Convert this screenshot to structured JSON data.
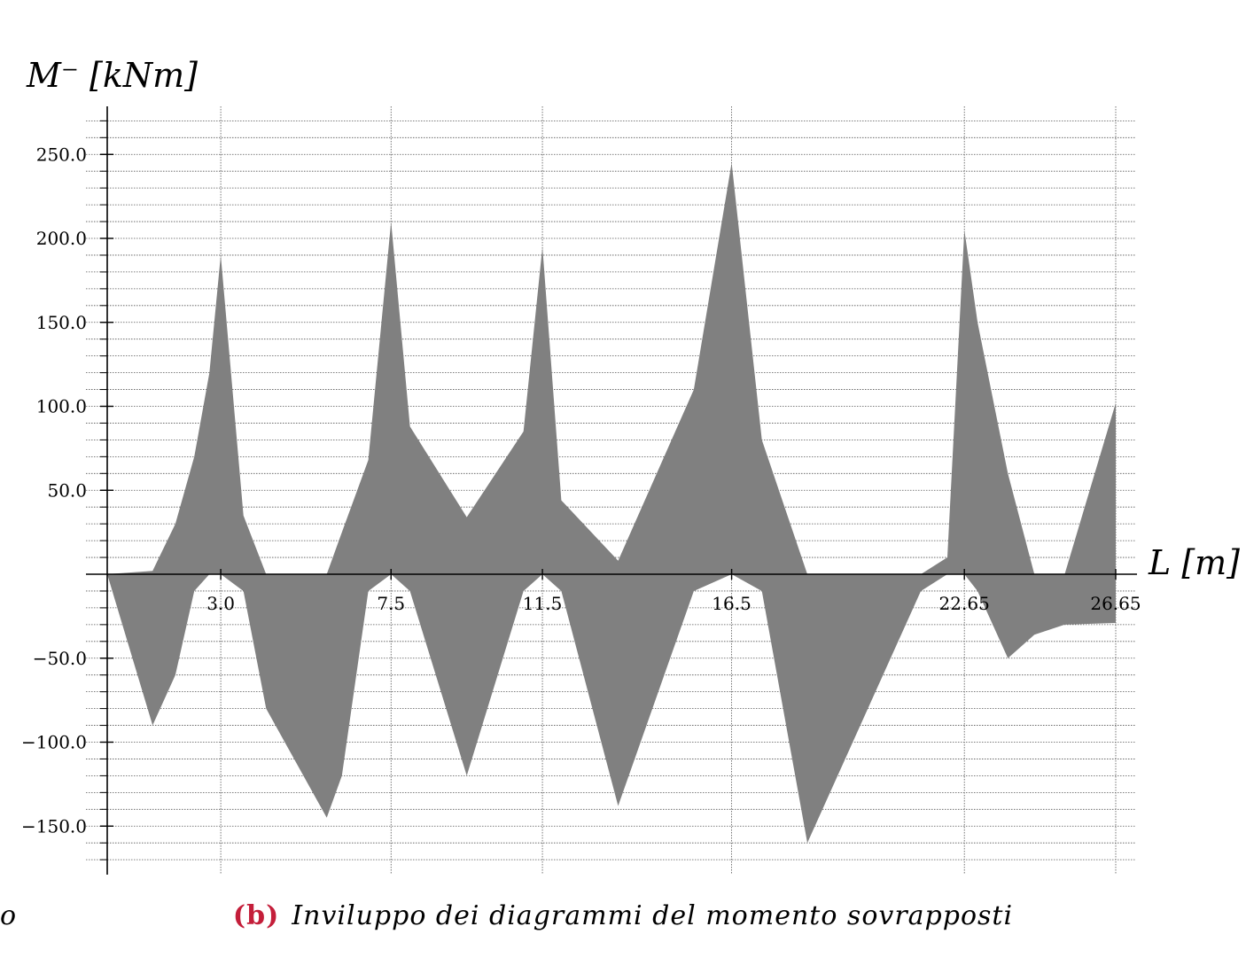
{
  "chart_data": {
    "type": "area",
    "ylabel": "M⁻ [kNm]",
    "xlabel": "L [m]",
    "x_ticks": [
      "3.0",
      "7.5",
      "11.5",
      "16.5",
      "22.65",
      "26.65"
    ],
    "y_ticks": [
      "250.0",
      "200.0",
      "150.0",
      "100.0",
      "50.0",
      "−50.0",
      "−100.0",
      "−150.0"
    ],
    "xlim": [
      0,
      26.65
    ],
    "ylim": [
      -175,
      280
    ],
    "grid": true,
    "fill_color": "#808080",
    "series": [
      {
        "x": [
          0,
          1.2,
          1.8,
          2.3,
          2.7,
          3.0,
          3.6,
          4.2,
          5.8,
          6.2,
          6.9,
          7.5,
          8.0,
          9.5,
          11.0,
          11.5,
          12.0,
          13.5,
          15.5,
          16.5,
          17.3,
          18.5,
          21.5,
          22.2,
          22.65,
          23.0,
          23.8,
          24.5,
          25.3,
          26.65
        ],
        "upper": [
          0,
          2,
          30,
          70,
          120,
          190,
          35,
          0,
          0,
          25,
          68,
          210,
          88,
          34,
          85,
          195,
          44,
          8,
          110,
          245,
          80,
          0,
          0,
          10,
          205,
          150,
          60,
          0,
          0,
          102
        ],
        "lower": [
          0,
          -90,
          -60,
          -10,
          0,
          0,
          -10,
          -80,
          -145,
          -120,
          -10,
          0,
          -10,
          -120,
          -10,
          0,
          -10,
          -138,
          -10,
          0,
          -10,
          -160,
          -10,
          0,
          0,
          -10,
          -50,
          -36,
          -30,
          -29
        ]
      }
    ]
  },
  "caption": {
    "label": "(b)",
    "text": "Inviluppo dei diagrammi del momento sovrapposti",
    "cut_left": "o"
  }
}
